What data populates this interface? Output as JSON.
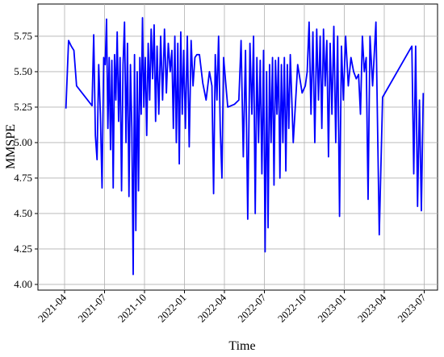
{
  "chart_data": {
    "type": "line",
    "ylabel": "MMSPE",
    "xlabel": "Time",
    "color": "#0000ff",
    "grid": true,
    "xlim": [
      "2021-02",
      "2023-08"
    ],
    "xticks": [
      "2021-04",
      "2021-07",
      "2021-10",
      "2022-01",
      "2022-04",
      "2022-07",
      "2022-10",
      "2023-01",
      "2023-04",
      "2023-07"
    ],
    "ylim": [
      3.96,
      5.977
    ],
    "yticks": [
      {
        "value": 4,
        "label": "4.00"
      },
      4.25,
      {
        "value": 4.5,
        "label": "4.50"
      },
      4.75,
      {
        "value": 5,
        "label": "5.00"
      },
      5.25,
      {
        "value": 5.5,
        "label": "5.50"
      },
      5.75
    ],
    "x": [
      "2021-04",
      "2021-04",
      "2021-04",
      "2021-04",
      "2021-04",
      "2021-06",
      "2021-06",
      "2021-06",
      "2021-06",
      "2021-06",
      "2021-06",
      "2021-06",
      "2021-06",
      "2021-07",
      "2021-07",
      "2021-07",
      "2021-07",
      "2021-07",
      "2021-07",
      "2021-07",
      "2021-07",
      "2021-07",
      "2021-07",
      "2021-08",
      "2021-08",
      "2021-08",
      "2021-08",
      "2021-08",
      "2021-08",
      "2021-08",
      "2021-08",
      "2021-08",
      "2021-09",
      "2021-09",
      "2021-09",
      "2021-09",
      "2021-09",
      "2021-09",
      "2021-09",
      "2021-09",
      "2021-09",
      "2021-09",
      "2021-10",
      "2021-10",
      "2021-10",
      "2021-10",
      "2021-10",
      "2021-10",
      "2021-10",
      "2021-10",
      "2021-10",
      "2021-11",
      "2021-11",
      "2021-11",
      "2021-11",
      "2021-11",
      "2021-11",
      "2021-11",
      "2021-12",
      "2021-12",
      "2021-12",
      "2021-12",
      "2021-12",
      "2021-12",
      "2021-12",
      "2021-12",
      "2021-12",
      "2022-01",
      "2022-01",
      "2022-01",
      "2022-01",
      "2022-01",
      "2022-01",
      "2022-01",
      "2022-02",
      "2022-02",
      "2022-02",
      "2022-02",
      "2022-03",
      "2022-03",
      "2022-03",
      "2022-03",
      "2022-03",
      "2022-03",
      "2022-03",
      "2022-03",
      "2022-04",
      "2022-04",
      "2022-05",
      "2022-05",
      "2022-05",
      "2022-05",
      "2022-05",
      "2022-05",
      "2022-06",
      "2022-06",
      "2022-06",
      "2022-06",
      "2022-06",
      "2022-06",
      "2022-06",
      "2022-06",
      "2022-07",
      "2022-07",
      "2022-07",
      "2022-07",
      "2022-07",
      "2022-07",
      "2022-07",
      "2022-07",
      "2022-07",
      "2022-08",
      "2022-08",
      "2022-08",
      "2022-08",
      "2022-08",
      "2022-08",
      "2022-08",
      "2022-08",
      "2022-08",
      "2022-09",
      "2022-09",
      "2022-09",
      "2022-10",
      "2022-10",
      "2022-10",
      "2022-10",
      "2022-10",
      "2022-10",
      "2022-10",
      "2022-11",
      "2022-11",
      "2022-11",
      "2022-11",
      "2022-11",
      "2022-11",
      "2022-11",
      "2022-11",
      "2022-12",
      "2022-12",
      "2022-12",
      "2022-12",
      "2022-12",
      "2022-12",
      "2022-12",
      "2023-01",
      "2023-01",
      "2023-01",
      "2023-01",
      "2023-01",
      "2023-02",
      "2023-02",
      "2023-02",
      "2023-02",
      "2023-02",
      "2023-02",
      "2023-02",
      "2023-03",
      "2023-03",
      "2023-03",
      "2023-03",
      "2023-06",
      "2023-06",
      "2023-06",
      "2023-06",
      "2023-06",
      "2023-06",
      "2023-06"
    ],
    "values": [
      5.24,
      5.72,
      5.68,
      5.65,
      5.4,
      5.26,
      5.76,
      5.05,
      4.88,
      5.55,
      5.2,
      4.68,
      5.6,
      5.55,
      5.87,
      5.1,
      5.6,
      4.95,
      5.58,
      4.68,
      5.62,
      5.3,
      5.78,
      5.15,
      5.6,
      4.66,
      5.55,
      5.85,
      5.0,
      5.7,
      4.62,
      5.55,
      5.1,
      4.07,
      5.62,
      4.38,
      5.5,
      4.66,
      5.6,
      5.2,
      5.88,
      5.25,
      5.6,
      5.05,
      5.7,
      5.3,
      5.8,
      5.45,
      5.83,
      5.15,
      5.68,
      5.2,
      5.75,
      5.3,
      5.8,
      5.35,
      5.7,
      5.5,
      5.65,
      5.1,
      5.75,
      5.0,
      5.7,
      4.85,
      5.78,
      5.2,
      5.65,
      5.1,
      5.75,
      4.97,
      5.72,
      5.4,
      5.6,
      5.62,
      5.62,
      5.42,
      5.3,
      5.5,
      5.4,
      4.64,
      5.62,
      5.3,
      5.75,
      5.1,
      4.75,
      5.6,
      5.25,
      5.27,
      5.3,
      5.72,
      4.9,
      5.65,
      4.46,
      5.7,
      5.2,
      5.75,
      4.5,
      5.6,
      5.0,
      5.58,
      4.78,
      5.65,
      4.23,
      5.5,
      4.4,
      5.55,
      5.0,
      5.6,
      4.7,
      5.58,
      5.2,
      5.6,
      4.75,
      5.55,
      5.0,
      5.6,
      4.8,
      5.55,
      5.1,
      5.62,
      5.0,
      5.55,
      5.35,
      5.4,
      5.5,
      5.85,
      5.2,
      5.78,
      5.0,
      5.8,
      5.3,
      5.75,
      5.1,
      5.8,
      5.4,
      5.72,
      4.9,
      5.7,
      5.2,
      5.82,
      5.0,
      5.75,
      4.48,
      5.68,
      5.3,
      5.75,
      5.4,
      5.6,
      5.5,
      5.45,
      5.48,
      5.2,
      5.75,
      5.5,
      5.6,
      4.6,
      5.75,
      5.4,
      5.85,
      4.35,
      5.32,
      5.68,
      4.78,
      5.68,
      4.55,
      5.3,
      4.52,
      5.35
    ]
  }
}
